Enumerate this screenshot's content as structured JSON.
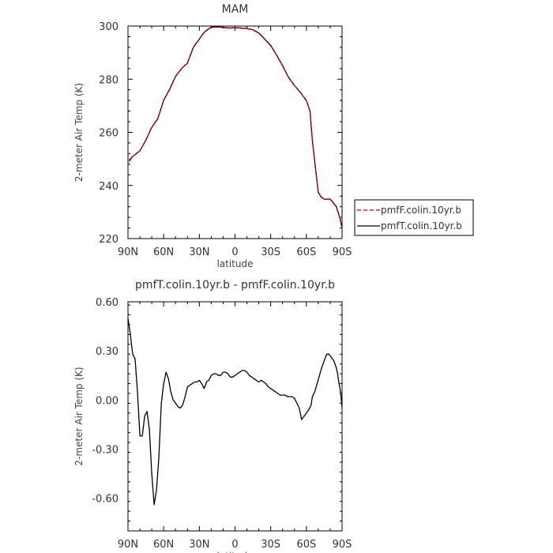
{
  "chart_data": [
    {
      "type": "line",
      "title": "MAM",
      "xlabel": "latitude",
      "ylabel": "2-meter Air Temp (K)",
      "xlim": [
        90,
        -90
      ],
      "ylim": [
        220,
        300
      ],
      "x_ticks": [
        90,
        60,
        30,
        0,
        -30,
        -60,
        -90
      ],
      "x_tick_labels": [
        "90N",
        "60N",
        "30N",
        "0",
        "30S",
        "60S",
        "90S"
      ],
      "y_ticks": [
        220,
        240,
        260,
        280,
        300
      ],
      "y_tick_labels": [
        "220",
        "240",
        "260",
        "280",
        "300"
      ],
      "legend_position": "right",
      "series": [
        {
          "name": "pmfF.colin.10yr.b",
          "color": "#cc0000",
          "dash": "dashed",
          "x": [
            89,
            86,
            80,
            75,
            70,
            65,
            60,
            55,
            50,
            45,
            40,
            35,
            30,
            27,
            25,
            20,
            15,
            10,
            5,
            0,
            -5,
            -10,
            -15,
            -20,
            -25,
            -30,
            -35,
            -40,
            -45,
            -50,
            -55,
            -60,
            -63,
            -65,
            -67,
            -70,
            -72,
            -75,
            -80,
            -85,
            -88,
            -90
          ],
          "y": [
            249,
            251,
            253,
            257,
            262,
            265,
            272,
            276,
            281,
            284,
            286,
            292,
            295,
            297,
            298,
            299.5,
            299.6,
            299.4,
            299.2,
            299.3,
            299.2,
            299,
            298.5,
            297.3,
            295,
            292.6,
            289,
            285,
            280.6,
            277.6,
            275,
            272,
            268,
            257,
            249,
            237.5,
            236,
            234.8,
            234.8,
            232,
            228,
            224
          ]
        },
        {
          "name": "pmfT.colin.10yr.b",
          "color": "#000000",
          "dash": "solid",
          "x": [
            89,
            86,
            80,
            75,
            70,
            65,
            60,
            55,
            50,
            45,
            40,
            35,
            30,
            27,
            25,
            20,
            15,
            10,
            5,
            0,
            -5,
            -10,
            -15,
            -20,
            -25,
            -30,
            -35,
            -40,
            -45,
            -50,
            -55,
            -60,
            -63,
            -65,
            -67,
            -70,
            -72,
            -75,
            -80,
            -85,
            -88,
            -90
          ],
          "y": [
            249.5,
            251,
            253,
            257.1,
            261.8,
            265.1,
            272.1,
            276.2,
            281.1,
            284,
            286.1,
            292.1,
            295.1,
            297.1,
            298.1,
            299.6,
            299.7,
            299.5,
            299.3,
            299.4,
            299.3,
            299.1,
            298.6,
            297.4,
            295.1,
            292.7,
            289.1,
            285.1,
            280.6,
            277.6,
            275,
            272,
            268,
            257,
            249,
            237.4,
            235.9,
            234.8,
            234.9,
            232.2,
            228.1,
            224
          ]
        }
      ]
    },
    {
      "type": "line",
      "title": "pmfT.colin.10yr.b - pmfF.colin.10yr.b",
      "xlabel": "latitude",
      "ylabel": "2-meter Air Temp (K)",
      "xlim": [
        90,
        -90
      ],
      "ylim": [
        -0.8,
        0.6
      ],
      "x_ticks": [
        90,
        60,
        30,
        0,
        -30,
        -60,
        -90
      ],
      "x_tick_labels": [
        "90N",
        "60N",
        "30N",
        "0",
        "30S",
        "60S",
        "90S"
      ],
      "y_ticks": [
        -0.6,
        -0.3,
        0,
        0.3,
        0.6
      ],
      "y_tick_labels": [
        "-0.60",
        "-0.30",
        "0.00",
        "0.30",
        "0.60"
      ],
      "series": [
        {
          "color": "#000000",
          "dash": "solid",
          "x": [
            90,
            88,
            86,
            84,
            82,
            80,
            78,
            76,
            74,
            72,
            70,
            68,
            66,
            64,
            62,
            60,
            58,
            56,
            54,
            52,
            50,
            48,
            46,
            44,
            42,
            40,
            38,
            36,
            34,
            32,
            30,
            28,
            26,
            24,
            22,
            20,
            18,
            16,
            14,
            12,
            10,
            8,
            6,
            4,
            2,
            0,
            -2,
            -4,
            -6,
            -8,
            -10,
            -12,
            -14,
            -16,
            -18,
            -20,
            -22,
            -24,
            -26,
            -28,
            -30,
            -32,
            -34,
            -36,
            -38,
            -40,
            -42,
            -44,
            -46,
            -48,
            -50,
            -52,
            -54,
            -56,
            -58,
            -60,
            -62,
            -64,
            -65,
            -67,
            -69,
            -71,
            -73,
            -75,
            -77,
            -79,
            -81,
            -83,
            -85,
            -86,
            -87,
            -88,
            -89,
            -90
          ],
          "y": [
            0.5,
            0.4,
            0.28,
            0.25,
            0.05,
            -0.22,
            -0.22,
            -0.1,
            -0.07,
            -0.18,
            -0.45,
            -0.64,
            -0.55,
            -0.35,
            -0.02,
            0.1,
            0.17,
            0.13,
            0.05,
            0.0,
            -0.02,
            -0.04,
            -0.05,
            -0.03,
            0.02,
            0.08,
            0.09,
            0.1,
            0.11,
            0.11,
            0.12,
            0.1,
            0.07,
            0.11,
            0.12,
            0.15,
            0.16,
            0.16,
            0.15,
            0.15,
            0.17,
            0.17,
            0.16,
            0.14,
            0.14,
            0.15,
            0.16,
            0.17,
            0.18,
            0.18,
            0.17,
            0.15,
            0.14,
            0.13,
            0.12,
            0.11,
            0.12,
            0.11,
            0.1,
            0.08,
            0.07,
            0.06,
            0.05,
            0.04,
            0.03,
            0.03,
            0.03,
            0.02,
            0.02,
            0.02,
            0.01,
            -0.02,
            -0.05,
            -0.12,
            -0.1,
            -0.08,
            -0.06,
            -0.03,
            0.02,
            0.05,
            0.1,
            0.15,
            0.2,
            0.24,
            0.28,
            0.28,
            0.26,
            0.24,
            0.2,
            0.17,
            0.12,
            0.08,
            0.03,
            -0.05
          ]
        }
      ]
    }
  ]
}
